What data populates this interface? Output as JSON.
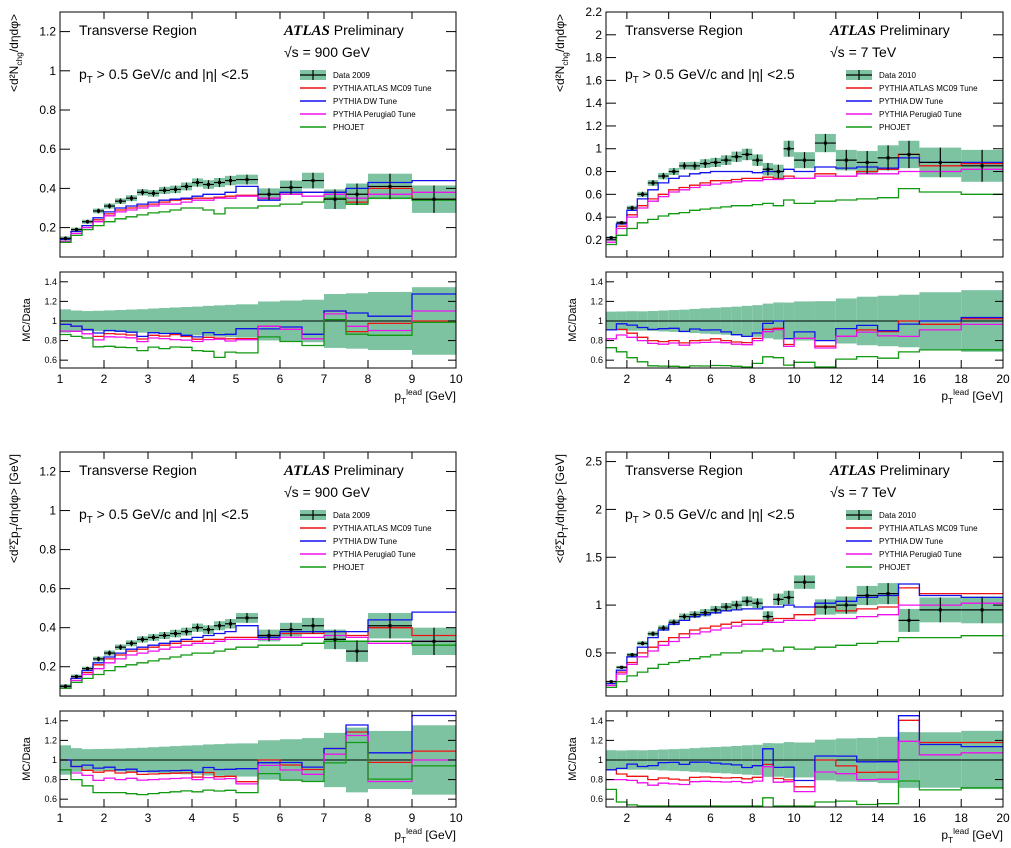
{
  "chart_data": [
    {
      "type": "line",
      "title": "",
      "region_label": "Transverse Region",
      "atlas_label": "ATLAS",
      "preliminary_label": "Preliminary",
      "energy_label": "√s = 900 GeV",
      "cut_label": "p_T > 0.5  GeV/c and |η| <2.5",
      "ylabel": "<d²N_chg/dηdφ>",
      "xlabel": "p_T^lead [GeV]",
      "ratio_ylabel": "MC/Data",
      "xlim": [
        1,
        10
      ],
      "ylim": [
        0.05,
        1.3
      ],
      "ratio_ylim": [
        0.52,
        1.5
      ],
      "x_ticks": [
        1,
        2,
        3,
        4,
        5,
        6,
        7,
        8,
        9,
        10
      ],
      "y_ticks": [
        0.2,
        0.4,
        0.6,
        0.8,
        1,
        1.2
      ],
      "ratio_ticks": [
        0.6,
        0.8,
        1,
        1.2,
        1.4
      ],
      "x_edges": [
        1,
        1.25,
        1.5,
        1.75,
        2,
        2.25,
        2.5,
        2.75,
        3,
        3.25,
        3.5,
        3.75,
        4,
        4.25,
        4.5,
        4.75,
        5,
        5.5,
        6,
        6.5,
        7,
        7.5,
        8,
        9,
        10
      ],
      "data": {
        "name": "Data 2009",
        "values": [
          0.145,
          0.19,
          0.23,
          0.285,
          0.31,
          0.335,
          0.35,
          0.38,
          0.375,
          0.39,
          0.395,
          0.41,
          0.43,
          0.42,
          0.43,
          0.44,
          0.445,
          0.37,
          0.405,
          0.44,
          0.345,
          0.37,
          0.41,
          0.345
        ],
        "errors": [
          0.01,
          0.01,
          0.01,
          0.012,
          0.013,
          0.014,
          0.015,
          0.016,
          0.017,
          0.018,
          0.019,
          0.02,
          0.021,
          0.022,
          0.023,
          0.024,
          0.025,
          0.03,
          0.035,
          0.04,
          0.05,
          0.055,
          0.065,
          0.07
        ]
      },
      "series": [
        {
          "name": "PYTHIA ATLAS MC09 Tune",
          "color": "#ee1111",
          "values": [
            0.14,
            0.18,
            0.21,
            0.24,
            0.27,
            0.29,
            0.3,
            0.31,
            0.32,
            0.33,
            0.34,
            0.345,
            0.35,
            0.35,
            0.355,
            0.36,
            0.365,
            0.35,
            0.37,
            0.38,
            0.38,
            0.33,
            0.4,
            0.345
          ]
        },
        {
          "name": "PYTHIA DW Tune",
          "color": "#1111ee",
          "values": [
            0.14,
            0.18,
            0.21,
            0.25,
            0.28,
            0.3,
            0.31,
            0.32,
            0.33,
            0.34,
            0.345,
            0.35,
            0.36,
            0.37,
            0.37,
            0.38,
            0.41,
            0.34,
            0.38,
            0.38,
            0.38,
            0.4,
            0.43,
            0.44
          ]
        },
        {
          "name": "PYTHIA Perugia0 Tune",
          "color": "#ee11ee",
          "values": [
            0.13,
            0.17,
            0.2,
            0.23,
            0.26,
            0.28,
            0.29,
            0.3,
            0.31,
            0.32,
            0.32,
            0.33,
            0.34,
            0.34,
            0.35,
            0.35,
            0.36,
            0.35,
            0.37,
            0.36,
            0.37,
            0.35,
            0.37,
            0.38
          ]
        },
        {
          "name": "PHOJET",
          "color": "#119911",
          "values": [
            0.125,
            0.16,
            0.19,
            0.21,
            0.23,
            0.245,
            0.255,
            0.265,
            0.275,
            0.28,
            0.29,
            0.3,
            0.3,
            0.29,
            0.27,
            0.3,
            0.3,
            0.31,
            0.32,
            0.33,
            0.35,
            0.32,
            0.35,
            0.34
          ]
        }
      ],
      "legend": [
        "Data 2009",
        "PYTHIA ATLAS MC09 Tune",
        "PYTHIA DW Tune",
        "PYTHIA Perugia0 Tune",
        "PHOJET"
      ]
    },
    {
      "type": "line",
      "title": "",
      "region_label": "Transverse Region",
      "atlas_label": "ATLAS",
      "preliminary_label": "Preliminary",
      "energy_label": "√s = 7 TeV",
      "cut_label": "p_T > 0.5  GeV/c and |η| <2.5",
      "ylabel": "<d²N_chg/dηdφ>",
      "xlabel": "p_T^lead [GeV]",
      "ratio_ylabel": "MC/Data",
      "xlim": [
        1,
        20
      ],
      "ylim": [
        0.05,
        2.2
      ],
      "ratio_ylim": [
        0.52,
        1.5
      ],
      "x_ticks": [
        2,
        4,
        6,
        8,
        10,
        12,
        14,
        16,
        18,
        20
      ],
      "y_ticks": [
        0.2,
        0.4,
        0.6,
        0.8,
        1,
        1.2,
        1.4,
        1.6,
        1.8,
        2,
        2.2
      ],
      "ratio_ticks": [
        0.6,
        0.8,
        1,
        1.2,
        1.4
      ],
      "x_edges": [
        1,
        1.5,
        2,
        2.5,
        3,
        3.5,
        4,
        4.5,
        5,
        5.5,
        6,
        6.5,
        7,
        7.5,
        8,
        8.5,
        9,
        9.5,
        10,
        11,
        12,
        13,
        14,
        15,
        16,
        18,
        20
      ],
      "data": {
        "name": "Data 2010",
        "values": [
          0.22,
          0.35,
          0.48,
          0.6,
          0.7,
          0.76,
          0.8,
          0.85,
          0.85,
          0.87,
          0.88,
          0.9,
          0.93,
          0.95,
          0.9,
          0.82,
          0.8,
          1.0,
          0.9,
          1.05,
          0.9,
          0.88,
          0.92,
          0.95,
          0.88,
          0.85
        ],
        "errors": [
          0.01,
          0.015,
          0.02,
          0.022,
          0.025,
          0.028,
          0.03,
          0.032,
          0.035,
          0.038,
          0.04,
          0.042,
          0.045,
          0.05,
          0.05,
          0.055,
          0.06,
          0.07,
          0.07,
          0.08,
          0.09,
          0.1,
          0.11,
          0.12,
          0.13,
          0.14
        ]
      },
      "series": [
        {
          "name": "PYTHIA ATLAS MC09 Tune",
          "color": "#ee1111",
          "values": [
            0.2,
            0.32,
            0.42,
            0.5,
            0.56,
            0.6,
            0.64,
            0.66,
            0.68,
            0.7,
            0.72,
            0.72,
            0.73,
            0.74,
            0.74,
            0.75,
            0.74,
            0.76,
            0.74,
            0.78,
            0.76,
            0.8,
            0.82,
            0.95,
            0.85,
            0.87
          ]
        },
        {
          "name": "PYTHIA DW Tune",
          "color": "#1111ee",
          "values": [
            0.2,
            0.34,
            0.46,
            0.56,
            0.64,
            0.7,
            0.74,
            0.76,
            0.78,
            0.79,
            0.8,
            0.8,
            0.8,
            0.8,
            0.79,
            0.8,
            0.8,
            0.82,
            0.8,
            0.84,
            0.83,
            0.84,
            0.83,
            0.92,
            0.88,
            0.88
          ]
        },
        {
          "name": "PYTHIA Perugia0 Tune",
          "color": "#ee11ee",
          "values": [
            0.18,
            0.3,
            0.4,
            0.48,
            0.54,
            0.58,
            0.62,
            0.64,
            0.66,
            0.68,
            0.69,
            0.7,
            0.71,
            0.72,
            0.72,
            0.73,
            0.73,
            0.74,
            0.74,
            0.76,
            0.76,
            0.78,
            0.78,
            0.8,
            0.8,
            0.82
          ]
        },
        {
          "name": "PHOJET",
          "color": "#119911",
          "values": [
            0.16,
            0.24,
            0.3,
            0.35,
            0.38,
            0.41,
            0.43,
            0.44,
            0.46,
            0.47,
            0.48,
            0.49,
            0.5,
            0.5,
            0.51,
            0.52,
            0.5,
            0.55,
            0.52,
            0.54,
            0.55,
            0.56,
            0.57,
            0.65,
            0.62,
            0.6
          ]
        }
      ],
      "legend": [
        "Data 2010",
        "PYTHIA ATLAS MC09 Tune",
        "PYTHIA DW Tune",
        "PYTHIA Perugia0 Tune",
        "PHOJET"
      ]
    },
    {
      "type": "line",
      "title": "",
      "region_label": "Transverse Region",
      "atlas_label": "ATLAS",
      "preliminary_label": "Preliminary",
      "energy_label": "√s = 900 GeV",
      "cut_label": "p_T > 0.5  GeV/c and |η| <2.5",
      "ylabel": "<d²Σp_T/dηdφ> [GeV]",
      "xlabel": "p_T^lead [GeV]",
      "ratio_ylabel": "MC/Data",
      "xlim": [
        1,
        10
      ],
      "ylim": [
        0.05,
        1.3
      ],
      "ratio_ylim": [
        0.52,
        1.5
      ],
      "x_ticks": [
        1,
        2,
        3,
        4,
        5,
        6,
        7,
        8,
        9,
        10
      ],
      "y_ticks": [
        0.2,
        0.4,
        0.6,
        0.8,
        1,
        1.2
      ],
      "ratio_ticks": [
        0.6,
        0.8,
        1,
        1.2,
        1.4
      ],
      "x_edges": [
        1,
        1.25,
        1.5,
        1.75,
        2,
        2.25,
        2.5,
        2.75,
        3,
        3.25,
        3.5,
        3.75,
        4,
        4.25,
        4.5,
        4.75,
        5,
        5.5,
        6,
        6.5,
        7,
        7.5,
        8,
        9,
        10
      ],
      "data": {
        "name": "Data 2009",
        "values": [
          0.1,
          0.15,
          0.19,
          0.24,
          0.27,
          0.3,
          0.32,
          0.34,
          0.35,
          0.36,
          0.37,
          0.38,
          0.4,
          0.39,
          0.41,
          0.42,
          0.45,
          0.36,
          0.39,
          0.41,
          0.34,
          0.28,
          0.41,
          0.33
        ],
        "errors": [
          0.01,
          0.01,
          0.01,
          0.012,
          0.013,
          0.014,
          0.015,
          0.016,
          0.017,
          0.018,
          0.019,
          0.02,
          0.021,
          0.022,
          0.023,
          0.024,
          0.025,
          0.03,
          0.035,
          0.04,
          0.05,
          0.055,
          0.065,
          0.07
        ]
      },
      "series": [
        {
          "name": "PYTHIA ATLAS MC09 Tune",
          "color": "#ee1111",
          "values": [
            0.1,
            0.14,
            0.17,
            0.21,
            0.24,
            0.26,
            0.28,
            0.29,
            0.3,
            0.31,
            0.32,
            0.33,
            0.33,
            0.34,
            0.34,
            0.35,
            0.35,
            0.36,
            0.37,
            0.37,
            0.38,
            0.36,
            0.4,
            0.36
          ]
        },
        {
          "name": "PYTHIA DW Tune",
          "color": "#1111ee",
          "values": [
            0.1,
            0.14,
            0.18,
            0.22,
            0.25,
            0.27,
            0.29,
            0.3,
            0.31,
            0.32,
            0.33,
            0.34,
            0.35,
            0.36,
            0.37,
            0.38,
            0.41,
            0.35,
            0.38,
            0.38,
            0.38,
            0.38,
            0.44,
            0.48
          ]
        },
        {
          "name": "PYTHIA Perugia0 Tune",
          "color": "#ee11ee",
          "values": [
            0.09,
            0.13,
            0.16,
            0.19,
            0.22,
            0.24,
            0.26,
            0.27,
            0.28,
            0.29,
            0.3,
            0.31,
            0.32,
            0.32,
            0.33,
            0.34,
            0.34,
            0.34,
            0.35,
            0.35,
            0.36,
            0.35,
            0.32,
            0.33
          ]
        },
        {
          "name": "PHOJET",
          "color": "#119911",
          "values": [
            0.09,
            0.12,
            0.14,
            0.16,
            0.18,
            0.2,
            0.21,
            0.22,
            0.23,
            0.24,
            0.25,
            0.26,
            0.27,
            0.27,
            0.28,
            0.29,
            0.3,
            0.31,
            0.31,
            0.32,
            0.33,
            0.33,
            0.33,
            0.31
          ]
        }
      ],
      "legend": [
        "Data 2009",
        "PYTHIA ATLAS MC09 Tune",
        "PYTHIA DW Tune",
        "PYTHIA Perugia0 Tune",
        "PHOJET"
      ]
    },
    {
      "type": "line",
      "title": "",
      "region_label": "Transverse Region",
      "atlas_label": "ATLAS",
      "preliminary_label": "Preliminary",
      "energy_label": "√s = 7 TeV",
      "cut_label": "p_T > 0.5  GeV/c and |η| <2.5",
      "ylabel": "<d²Σp_T/dηdφ> [GeV]",
      "xlabel": "p_T^lead [GeV]",
      "ratio_ylabel": "MC/Data",
      "xlim": [
        1,
        20
      ],
      "ylim": [
        0.05,
        2.6
      ],
      "ratio_ylim": [
        0.52,
        1.5
      ],
      "x_ticks": [
        2,
        4,
        6,
        8,
        10,
        12,
        14,
        16,
        18,
        20
      ],
      "y_ticks": [
        0.5,
        1,
        1.5,
        2,
        2.5
      ],
      "ratio_ticks": [
        0.6,
        0.8,
        1,
        1.2,
        1.4
      ],
      "x_edges": [
        1,
        1.5,
        2,
        2.5,
        3,
        3.5,
        4,
        4.5,
        5,
        5.5,
        6,
        6.5,
        7,
        7.5,
        8,
        8.5,
        9,
        9.5,
        10,
        11,
        12,
        13,
        14,
        15,
        16,
        18,
        20
      ],
      "data": {
        "name": "Data 2010",
        "values": [
          0.2,
          0.35,
          0.48,
          0.6,
          0.7,
          0.76,
          0.82,
          0.88,
          0.9,
          0.92,
          0.95,
          0.98,
          1.0,
          1.04,
          1.02,
          0.88,
          1.06,
          1.08,
          1.24,
          0.98,
          1.0,
          1.1,
          1.12,
          0.84,
          0.95,
          0.95
        ],
        "errors": [
          0.01,
          0.015,
          0.02,
          0.022,
          0.025,
          0.028,
          0.03,
          0.032,
          0.035,
          0.038,
          0.04,
          0.042,
          0.045,
          0.05,
          0.05,
          0.055,
          0.06,
          0.07,
          0.07,
          0.08,
          0.09,
          0.1,
          0.11,
          0.12,
          0.13,
          0.14
        ]
      },
      "series": [
        {
          "name": "PYTHIA ATLAS MC09 Tune",
          "color": "#ee1111",
          "values": [
            0.18,
            0.3,
            0.4,
            0.5,
            0.56,
            0.62,
            0.66,
            0.7,
            0.74,
            0.76,
            0.78,
            0.8,
            0.82,
            0.84,
            0.84,
            0.84,
            0.86,
            0.86,
            0.9,
            0.98,
            0.94,
            0.96,
            0.98,
            1.18,
            1.12,
            1.12
          ]
        },
        {
          "name": "PYTHIA DW Tune",
          "color": "#1111ee",
          "values": [
            0.18,
            0.32,
            0.46,
            0.56,
            0.66,
            0.74,
            0.8,
            0.84,
            0.88,
            0.9,
            0.92,
            0.94,
            0.95,
            0.96,
            0.96,
            0.98,
            0.98,
            1.0,
            0.98,
            1.02,
            1.04,
            1.08,
            1.1,
            1.22,
            1.1,
            1.08
          ]
        },
        {
          "name": "PYTHIA Perugia0 Tune",
          "color": "#ee11ee",
          "values": [
            0.16,
            0.28,
            0.38,
            0.46,
            0.52,
            0.58,
            0.62,
            0.66,
            0.7,
            0.72,
            0.74,
            0.76,
            0.78,
            0.8,
            0.8,
            0.82,
            0.82,
            0.84,
            0.84,
            0.86,
            0.86,
            0.88,
            0.9,
            1.0,
            1.0,
            1.02
          ]
        },
        {
          "name": "PHOJET",
          "color": "#119911",
          "values": [
            0.14,
            0.2,
            0.26,
            0.3,
            0.34,
            0.38,
            0.4,
            0.42,
            0.44,
            0.46,
            0.48,
            0.5,
            0.5,
            0.52,
            0.52,
            0.54,
            0.52,
            0.56,
            0.54,
            0.56,
            0.58,
            0.6,
            0.62,
            0.66,
            0.66,
            0.68
          ]
        }
      ],
      "legend": [
        "Data 2010",
        "PYTHIA ATLAS MC09 Tune",
        "PYTHIA DW Tune",
        "PYTHIA Perugia0 Tune",
        "PHOJET"
      ]
    }
  ]
}
